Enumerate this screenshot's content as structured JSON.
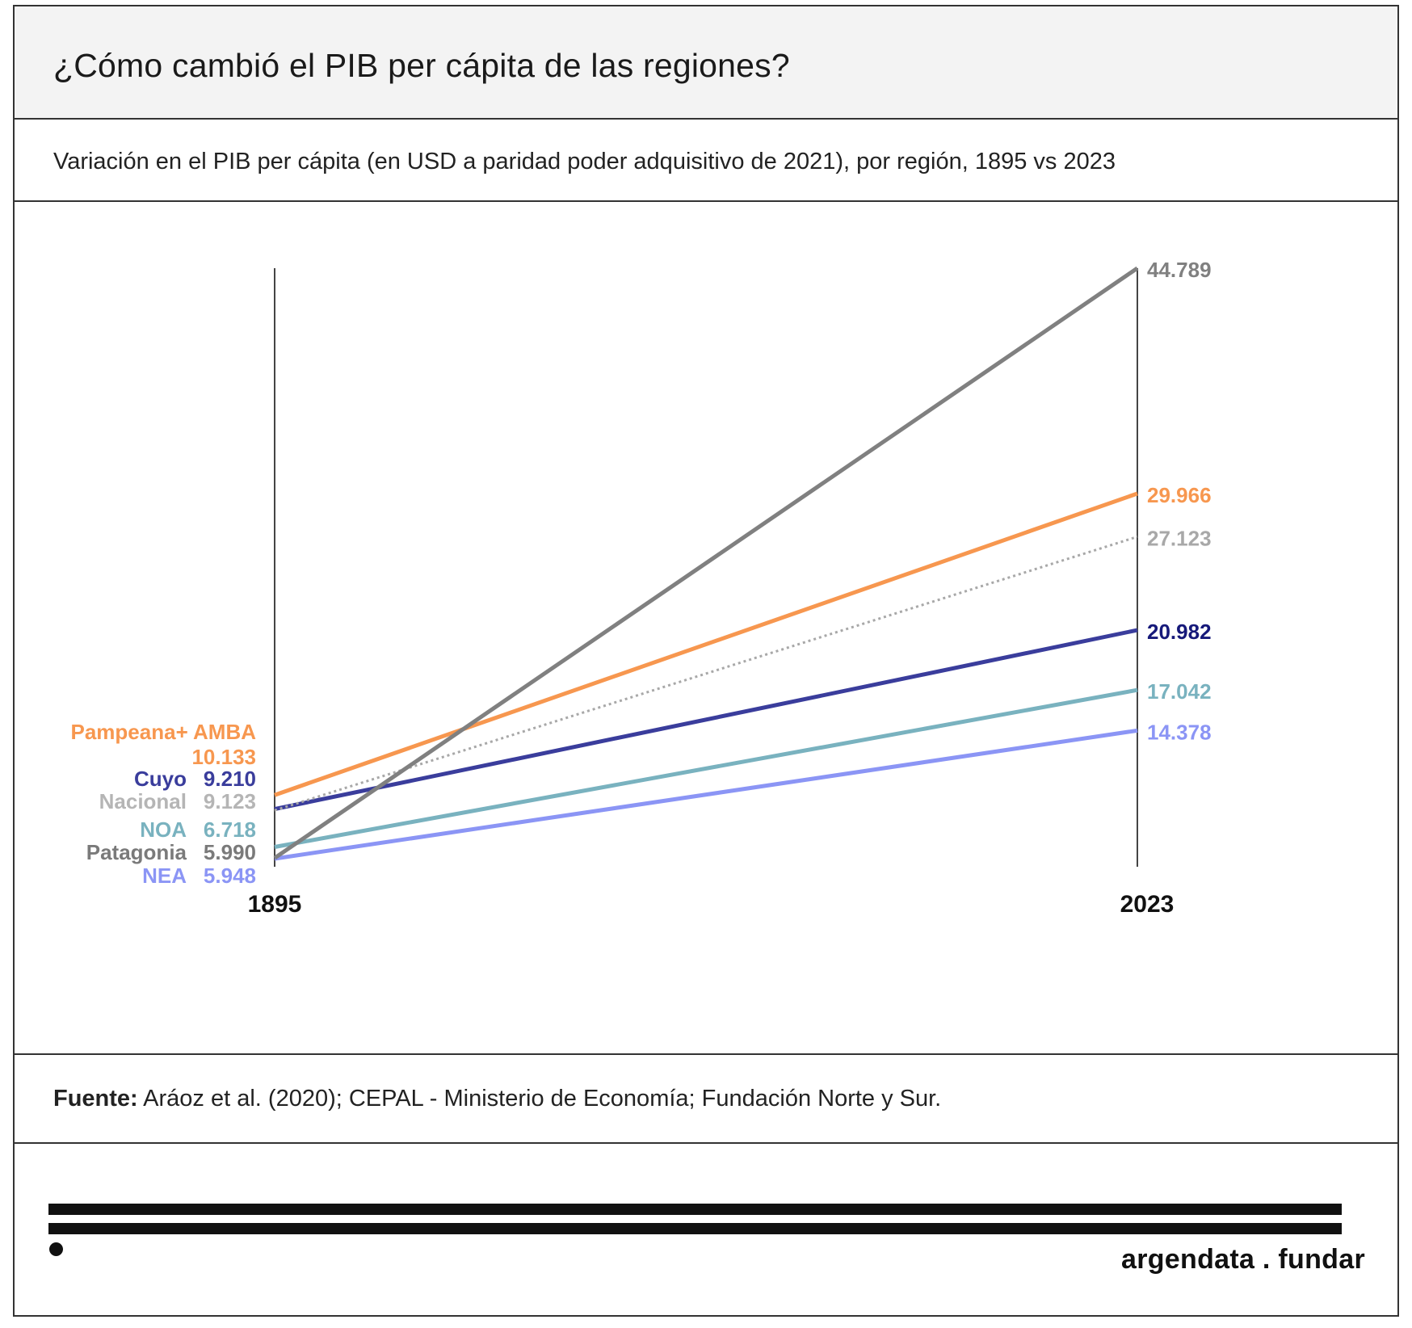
{
  "header": {
    "title": "¿Cómo cambió el PIB per cápita de las regiones?"
  },
  "subtitle": "Variación en el PIB per cápita (en USD a paridad poder adquisitivo de 2021), por región, 1895 vs 2023",
  "source": {
    "label": "Fuente:",
    "text": " Aráoz et al. (2020); CEPAL - Ministerio de Economía; Fundación Norte y Sur."
  },
  "brand": {
    "name": "argendata . fundar"
  },
  "chart_data": {
    "type": "line",
    "x": [
      "1895",
      "2023"
    ],
    "series": [
      {
        "name": "Patagonia",
        "values": [
          5990,
          44789
        ],
        "start_label": "5.990",
        "end_label": "44.789",
        "color": "#808080",
        "dashed": false
      },
      {
        "name": "Pampeana+ AMBA",
        "values": [
          10133,
          29966
        ],
        "start_label": "10.133",
        "end_label": "29.966",
        "color": "#f7974f",
        "dashed": false
      },
      {
        "name": "Nacional",
        "values": [
          9123,
          27123
        ],
        "start_label": "9.123",
        "end_label": "27.123",
        "color": "#a8a8a8",
        "dashed": true
      },
      {
        "name": "Cuyo",
        "values": [
          9210,
          20982
        ],
        "start_label": "9.210",
        "end_label": "20.982",
        "color": "#3a3d9c",
        "dashed": false
      },
      {
        "name": "NOA",
        "values": [
          6718,
          17042
        ],
        "start_label": "6.718",
        "end_label": "17.042",
        "color": "#79b2bf",
        "dashed": false
      },
      {
        "name": "NEA",
        "values": [
          5948,
          14378
        ],
        "start_label": "5.948",
        "end_label": "14.378",
        "color": "#8b95f5",
        "dashed": false
      }
    ],
    "end_label_colors": {
      "Patagonia": "#808080",
      "Pampeana+ AMBA": "#f7974f",
      "Nacional": "#a8a8a8",
      "Cuyo": "#16197a",
      "NOA": "#79b2bf",
      "NEA": "#8b95f5"
    },
    "left_label_colors": {
      "Patagonia": {
        "name": "#7a7a7a",
        "value": "#7a7a7a"
      },
      "Pampeana+ AMBA": {
        "name": "#f7974f",
        "value": "#f7974f"
      },
      "Nacional": {
        "name": "#b5b5b5",
        "value": "#b5b5b5"
      },
      "Cuyo": {
        "name": "#3a3d9c",
        "value": "#3a3d9c"
      },
      "NOA": {
        "name": "#79b2bf",
        "value": "#79b2bf"
      },
      "NEA": {
        "name": "#8b95f5",
        "value": "#8b95f5"
      }
    },
    "axis_color": "#444444",
    "grid": false,
    "ylim": [
      5948,
      44789
    ]
  }
}
